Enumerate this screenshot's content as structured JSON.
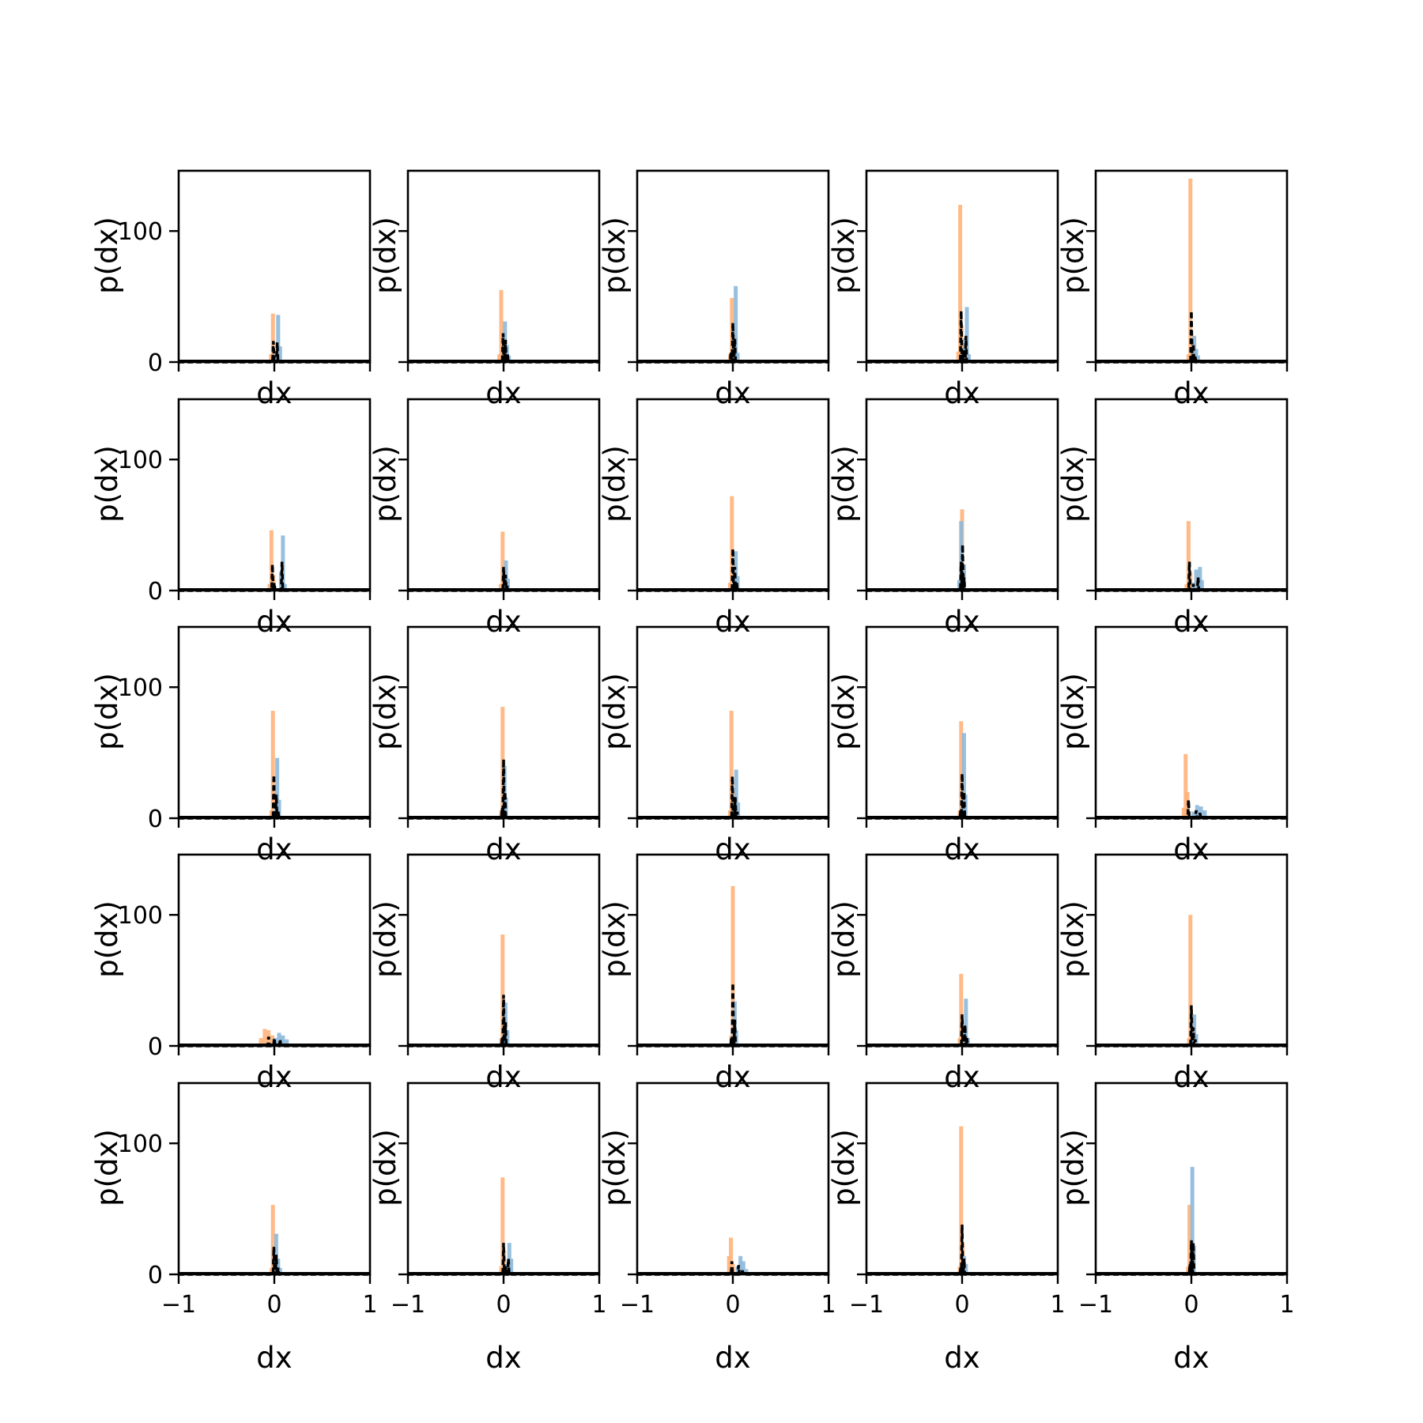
{
  "chart_data": {
    "type": "grid-of-histograms",
    "rows": 5,
    "cols": 5,
    "xlabel": "dx",
    "ylabel": "p(dx)",
    "xlim": [
      -1,
      1
    ],
    "ylim": [
      0,
      146
    ],
    "x_ticks": [
      -1,
      0,
      1
    ],
    "x_tick_labels": [
      "−1",
      "0",
      "1"
    ],
    "y_ticks": [
      0,
      100
    ],
    "y_tick_labels": [
      "0",
      "100"
    ],
    "colors": {
      "orange": "#ffb27a",
      "blue": "#8cb8da",
      "dashed": "#000000",
      "axes": "#000000"
    },
    "panels": [
      {
        "row": 0,
        "col": 0,
        "orange": [
          [
            -0.015,
            37
          ],
          [
            0.005,
            10
          ],
          [
            -0.035,
            6
          ]
        ],
        "blue": [
          [
            0.04,
            36
          ],
          [
            0.06,
            12
          ],
          [
            0.02,
            8
          ]
        ],
        "black": [
          [
            -0.01,
            16
          ],
          [
            0.03,
            15
          ],
          [
            0.0,
            5
          ]
        ]
      },
      {
        "row": 0,
        "col": 1,
        "orange": [
          [
            -0.025,
            55
          ],
          [
            -0.005,
            18
          ],
          [
            -0.045,
            6
          ]
        ],
        "blue": [
          [
            0.015,
            31
          ],
          [
            0.035,
            13
          ],
          [
            0.055,
            5
          ]
        ],
        "black": [
          [
            -0.005,
            22
          ],
          [
            0.02,
            17
          ],
          [
            0.04,
            7
          ]
        ]
      },
      {
        "row": 0,
        "col": 2,
        "orange": [
          [
            -0.01,
            49
          ],
          [
            0.005,
            18
          ],
          [
            -0.03,
            6
          ]
        ],
        "blue": [
          [
            0.03,
            58
          ],
          [
            0.015,
            22
          ],
          [
            0.05,
            7
          ]
        ],
        "black": [
          [
            0.0,
            30
          ],
          [
            0.02,
            18
          ],
          [
            -0.02,
            8
          ]
        ]
      },
      {
        "row": 0,
        "col": 3,
        "orange": [
          [
            -0.02,
            120
          ],
          [
            -0.005,
            28
          ],
          [
            -0.04,
            8
          ]
        ],
        "blue": [
          [
            0.05,
            42
          ],
          [
            0.03,
            18
          ],
          [
            0.07,
            6
          ]
        ],
        "black": [
          [
            -0.01,
            39
          ],
          [
            0.04,
            20
          ],
          [
            0.015,
            9
          ]
        ]
      },
      {
        "row": 0,
        "col": 4,
        "orange": [
          [
            -0.01,
            140
          ],
          [
            0.005,
            20
          ],
          [
            -0.03,
            6
          ]
        ],
        "blue": [
          [
            0.03,
            20
          ],
          [
            0.05,
            10
          ],
          [
            0.07,
            5
          ]
        ],
        "black": [
          [
            0.0,
            39
          ],
          [
            0.02,
            14
          ],
          [
            0.04,
            5
          ]
        ]
      },
      {
        "row": 1,
        "col": 0,
        "orange": [
          [
            -0.03,
            46
          ],
          [
            -0.01,
            12
          ],
          [
            -0.05,
            5
          ]
        ],
        "blue": [
          [
            0.09,
            42
          ],
          [
            0.07,
            14
          ],
          [
            0.11,
            5
          ]
        ],
        "black": [
          [
            -0.02,
            20
          ],
          [
            0.08,
            22
          ],
          [
            0.0,
            6
          ]
        ]
      },
      {
        "row": 1,
        "col": 1,
        "orange": [
          [
            -0.01,
            45
          ],
          [
            0.005,
            14
          ],
          [
            -0.03,
            5
          ]
        ],
        "blue": [
          [
            0.025,
            23
          ],
          [
            0.045,
            9
          ],
          [
            0.01,
            5
          ]
        ],
        "black": [
          [
            0.0,
            18
          ],
          [
            0.02,
            12
          ],
          [
            0.04,
            4
          ]
        ]
      },
      {
        "row": 1,
        "col": 2,
        "orange": [
          [
            -0.01,
            72
          ],
          [
            0.005,
            20
          ],
          [
            -0.03,
            6
          ]
        ],
        "blue": [
          [
            0.03,
            30
          ],
          [
            0.05,
            11
          ],
          [
            0.015,
            8
          ]
        ],
        "black": [
          [
            0.0,
            32
          ],
          [
            0.02,
            18
          ],
          [
            0.04,
            6
          ]
        ]
      },
      {
        "row": 1,
        "col": 3,
        "orange": [
          [
            0.0,
            62
          ],
          [
            0.015,
            18
          ],
          [
            -0.02,
            6
          ]
        ],
        "blue": [
          [
            -0.01,
            53
          ],
          [
            0.02,
            20
          ],
          [
            -0.03,
            8
          ]
        ],
        "black": [
          [
            0.005,
            35
          ],
          [
            -0.01,
            22
          ],
          [
            0.02,
            10
          ]
        ]
      },
      {
        "row": 1,
        "col": 4,
        "orange": [
          [
            -0.03,
            53
          ],
          [
            -0.01,
            14
          ],
          [
            -0.05,
            5
          ]
        ],
        "blue": [
          [
            0.05,
            16
          ],
          [
            0.09,
            18
          ],
          [
            0.11,
            8
          ],
          [
            0.03,
            6
          ]
        ],
        "black": [
          [
            -0.02,
            22
          ],
          [
            0.07,
            10
          ],
          [
            0.02,
            5
          ]
        ]
      },
      {
        "row": 2,
        "col": 0,
        "orange": [
          [
            -0.015,
            82
          ],
          [
            0.0,
            20
          ],
          [
            -0.03,
            6
          ]
        ],
        "blue": [
          [
            0.03,
            46
          ],
          [
            0.05,
            14
          ],
          [
            0.015,
            8
          ]
        ],
        "black": [
          [
            -0.005,
            33
          ],
          [
            0.02,
            18
          ],
          [
            0.04,
            5
          ]
        ]
      },
      {
        "row": 2,
        "col": 1,
        "orange": [
          [
            -0.01,
            85
          ],
          [
            0.005,
            22
          ],
          [
            -0.025,
            6
          ]
        ],
        "blue": [
          [
            0.01,
            40
          ],
          [
            0.025,
            16
          ],
          [
            -0.005,
            8
          ]
        ],
        "black": [
          [
            0.0,
            45
          ],
          [
            0.015,
            20
          ],
          [
            -0.015,
            8
          ]
        ]
      },
      {
        "row": 2,
        "col": 2,
        "orange": [
          [
            -0.015,
            82
          ],
          [
            0.0,
            20
          ],
          [
            -0.03,
            6
          ]
        ],
        "blue": [
          [
            0.035,
            37
          ],
          [
            0.055,
            12
          ],
          [
            0.015,
            8
          ]
        ],
        "black": [
          [
            -0.005,
            32
          ],
          [
            0.025,
            16
          ],
          [
            0.045,
            5
          ]
        ]
      },
      {
        "row": 2,
        "col": 3,
        "orange": [
          [
            -0.01,
            74
          ],
          [
            0.005,
            20
          ],
          [
            -0.025,
            6
          ]
        ],
        "blue": [
          [
            0.02,
            65
          ],
          [
            0.035,
            18
          ],
          [
            0.005,
            10
          ]
        ],
        "black": [
          [
            0.0,
            34
          ],
          [
            0.02,
            20
          ],
          [
            -0.015,
            6
          ]
        ]
      },
      {
        "row": 2,
        "col": 4,
        "orange": [
          [
            -0.06,
            49
          ],
          [
            -0.04,
            20
          ],
          [
            -0.08,
            8
          ]
        ],
        "blue": [
          [
            0.06,
            10
          ],
          [
            0.1,
            9
          ],
          [
            0.14,
            6
          ],
          [
            0.02,
            5
          ]
        ],
        "black": [
          [
            -0.03,
            14
          ],
          [
            0.05,
            6
          ],
          [
            0.09,
            4
          ]
        ]
      },
      {
        "row": 3,
        "col": 0,
        "orange": [
          [
            -0.1,
            13
          ],
          [
            -0.06,
            12
          ],
          [
            -0.14,
            6
          ],
          [
            -0.02,
            8
          ]
        ],
        "blue": [
          [
            0.05,
            10
          ],
          [
            0.09,
            8
          ],
          [
            0.13,
            5
          ],
          [
            0.01,
            6
          ]
        ],
        "black": [
          [
            -0.06,
            7
          ],
          [
            0.0,
            6
          ],
          [
            0.06,
            5
          ]
        ]
      },
      {
        "row": 3,
        "col": 1,
        "orange": [
          [
            -0.01,
            85
          ],
          [
            0.005,
            22
          ],
          [
            -0.025,
            6
          ]
        ],
        "blue": [
          [
            0.02,
            33
          ],
          [
            0.04,
            12
          ],
          [
            0.005,
            8
          ]
        ],
        "black": [
          [
            0.0,
            39
          ],
          [
            0.02,
            18
          ],
          [
            -0.015,
            6
          ]
        ]
      },
      {
        "row": 3,
        "col": 2,
        "orange": [
          [
            0.0,
            122
          ],
          [
            0.015,
            28
          ],
          [
            -0.015,
            8
          ]
        ],
        "blue": [
          [
            0.02,
            34
          ],
          [
            0.035,
            12
          ],
          [
            0.005,
            8
          ]
        ],
        "black": [
          [
            0.0,
            48
          ],
          [
            0.02,
            20
          ],
          [
            -0.015,
            6
          ]
        ]
      },
      {
        "row": 3,
        "col": 3,
        "orange": [
          [
            -0.01,
            55
          ],
          [
            0.005,
            18
          ],
          [
            -0.025,
            6
          ]
        ],
        "blue": [
          [
            0.04,
            36
          ],
          [
            0.02,
            16
          ],
          [
            0.06,
            6
          ]
        ],
        "black": [
          [
            0.0,
            24
          ],
          [
            0.03,
            16
          ],
          [
            0.05,
            6
          ]
        ]
      },
      {
        "row": 3,
        "col": 4,
        "orange": [
          [
            -0.01,
            100
          ],
          [
            0.005,
            24
          ],
          [
            -0.025,
            6
          ]
        ],
        "blue": [
          [
            0.03,
            24
          ],
          [
            0.05,
            9
          ],
          [
            0.015,
            8
          ]
        ],
        "black": [
          [
            0.0,
            31
          ],
          [
            0.02,
            14
          ],
          [
            0.04,
            5
          ]
        ]
      },
      {
        "row": 4,
        "col": 0,
        "orange": [
          [
            -0.015,
            53
          ],
          [
            0.0,
            14
          ],
          [
            -0.03,
            5
          ]
        ],
        "blue": [
          [
            0.02,
            31
          ],
          [
            0.04,
            12
          ],
          [
            0.06,
            5
          ]
        ],
        "black": [
          [
            -0.005,
            21
          ],
          [
            0.02,
            15
          ],
          [
            0.04,
            5
          ]
        ]
      },
      {
        "row": 4,
        "col": 1,
        "orange": [
          [
            -0.01,
            74
          ],
          [
            0.005,
            18
          ],
          [
            -0.025,
            6
          ]
        ],
        "blue": [
          [
            0.06,
            24
          ],
          [
            0.08,
            12
          ],
          [
            0.04,
            8
          ]
        ],
        "black": [
          [
            0.0,
            24
          ],
          [
            0.05,
            12
          ],
          [
            0.02,
            6
          ]
        ]
      },
      {
        "row": 4,
        "col": 2,
        "orange": [
          [
            -0.02,
            28
          ],
          [
            -0.04,
            14
          ],
          [
            0.0,
            8
          ]
        ],
        "blue": [
          [
            0.08,
            14
          ],
          [
            0.11,
            10
          ],
          [
            0.05,
            6
          ],
          [
            0.14,
            4
          ]
        ],
        "black": [
          [
            -0.01,
            10
          ],
          [
            0.06,
            7
          ],
          [
            0.1,
            3
          ]
        ]
      },
      {
        "row": 4,
        "col": 3,
        "orange": [
          [
            -0.01,
            113
          ],
          [
            0.005,
            24
          ],
          [
            -0.025,
            6
          ]
        ],
        "blue": [
          [
            0.02,
            14
          ],
          [
            0.04,
            8
          ],
          [
            0.005,
            6
          ]
        ],
        "black": [
          [
            0.0,
            38
          ],
          [
            0.02,
            12
          ],
          [
            -0.015,
            5
          ]
        ]
      },
      {
        "row": 4,
        "col": 4,
        "orange": [
          [
            -0.02,
            53
          ],
          [
            -0.005,
            16
          ],
          [
            -0.035,
            6
          ]
        ],
        "blue": [
          [
            0.01,
            82
          ],
          [
            0.025,
            22
          ],
          [
            -0.005,
            10
          ]
        ],
        "black": [
          [
            0.0,
            26
          ],
          [
            0.02,
            24
          ],
          [
            -0.015,
            8
          ]
        ]
      }
    ]
  }
}
